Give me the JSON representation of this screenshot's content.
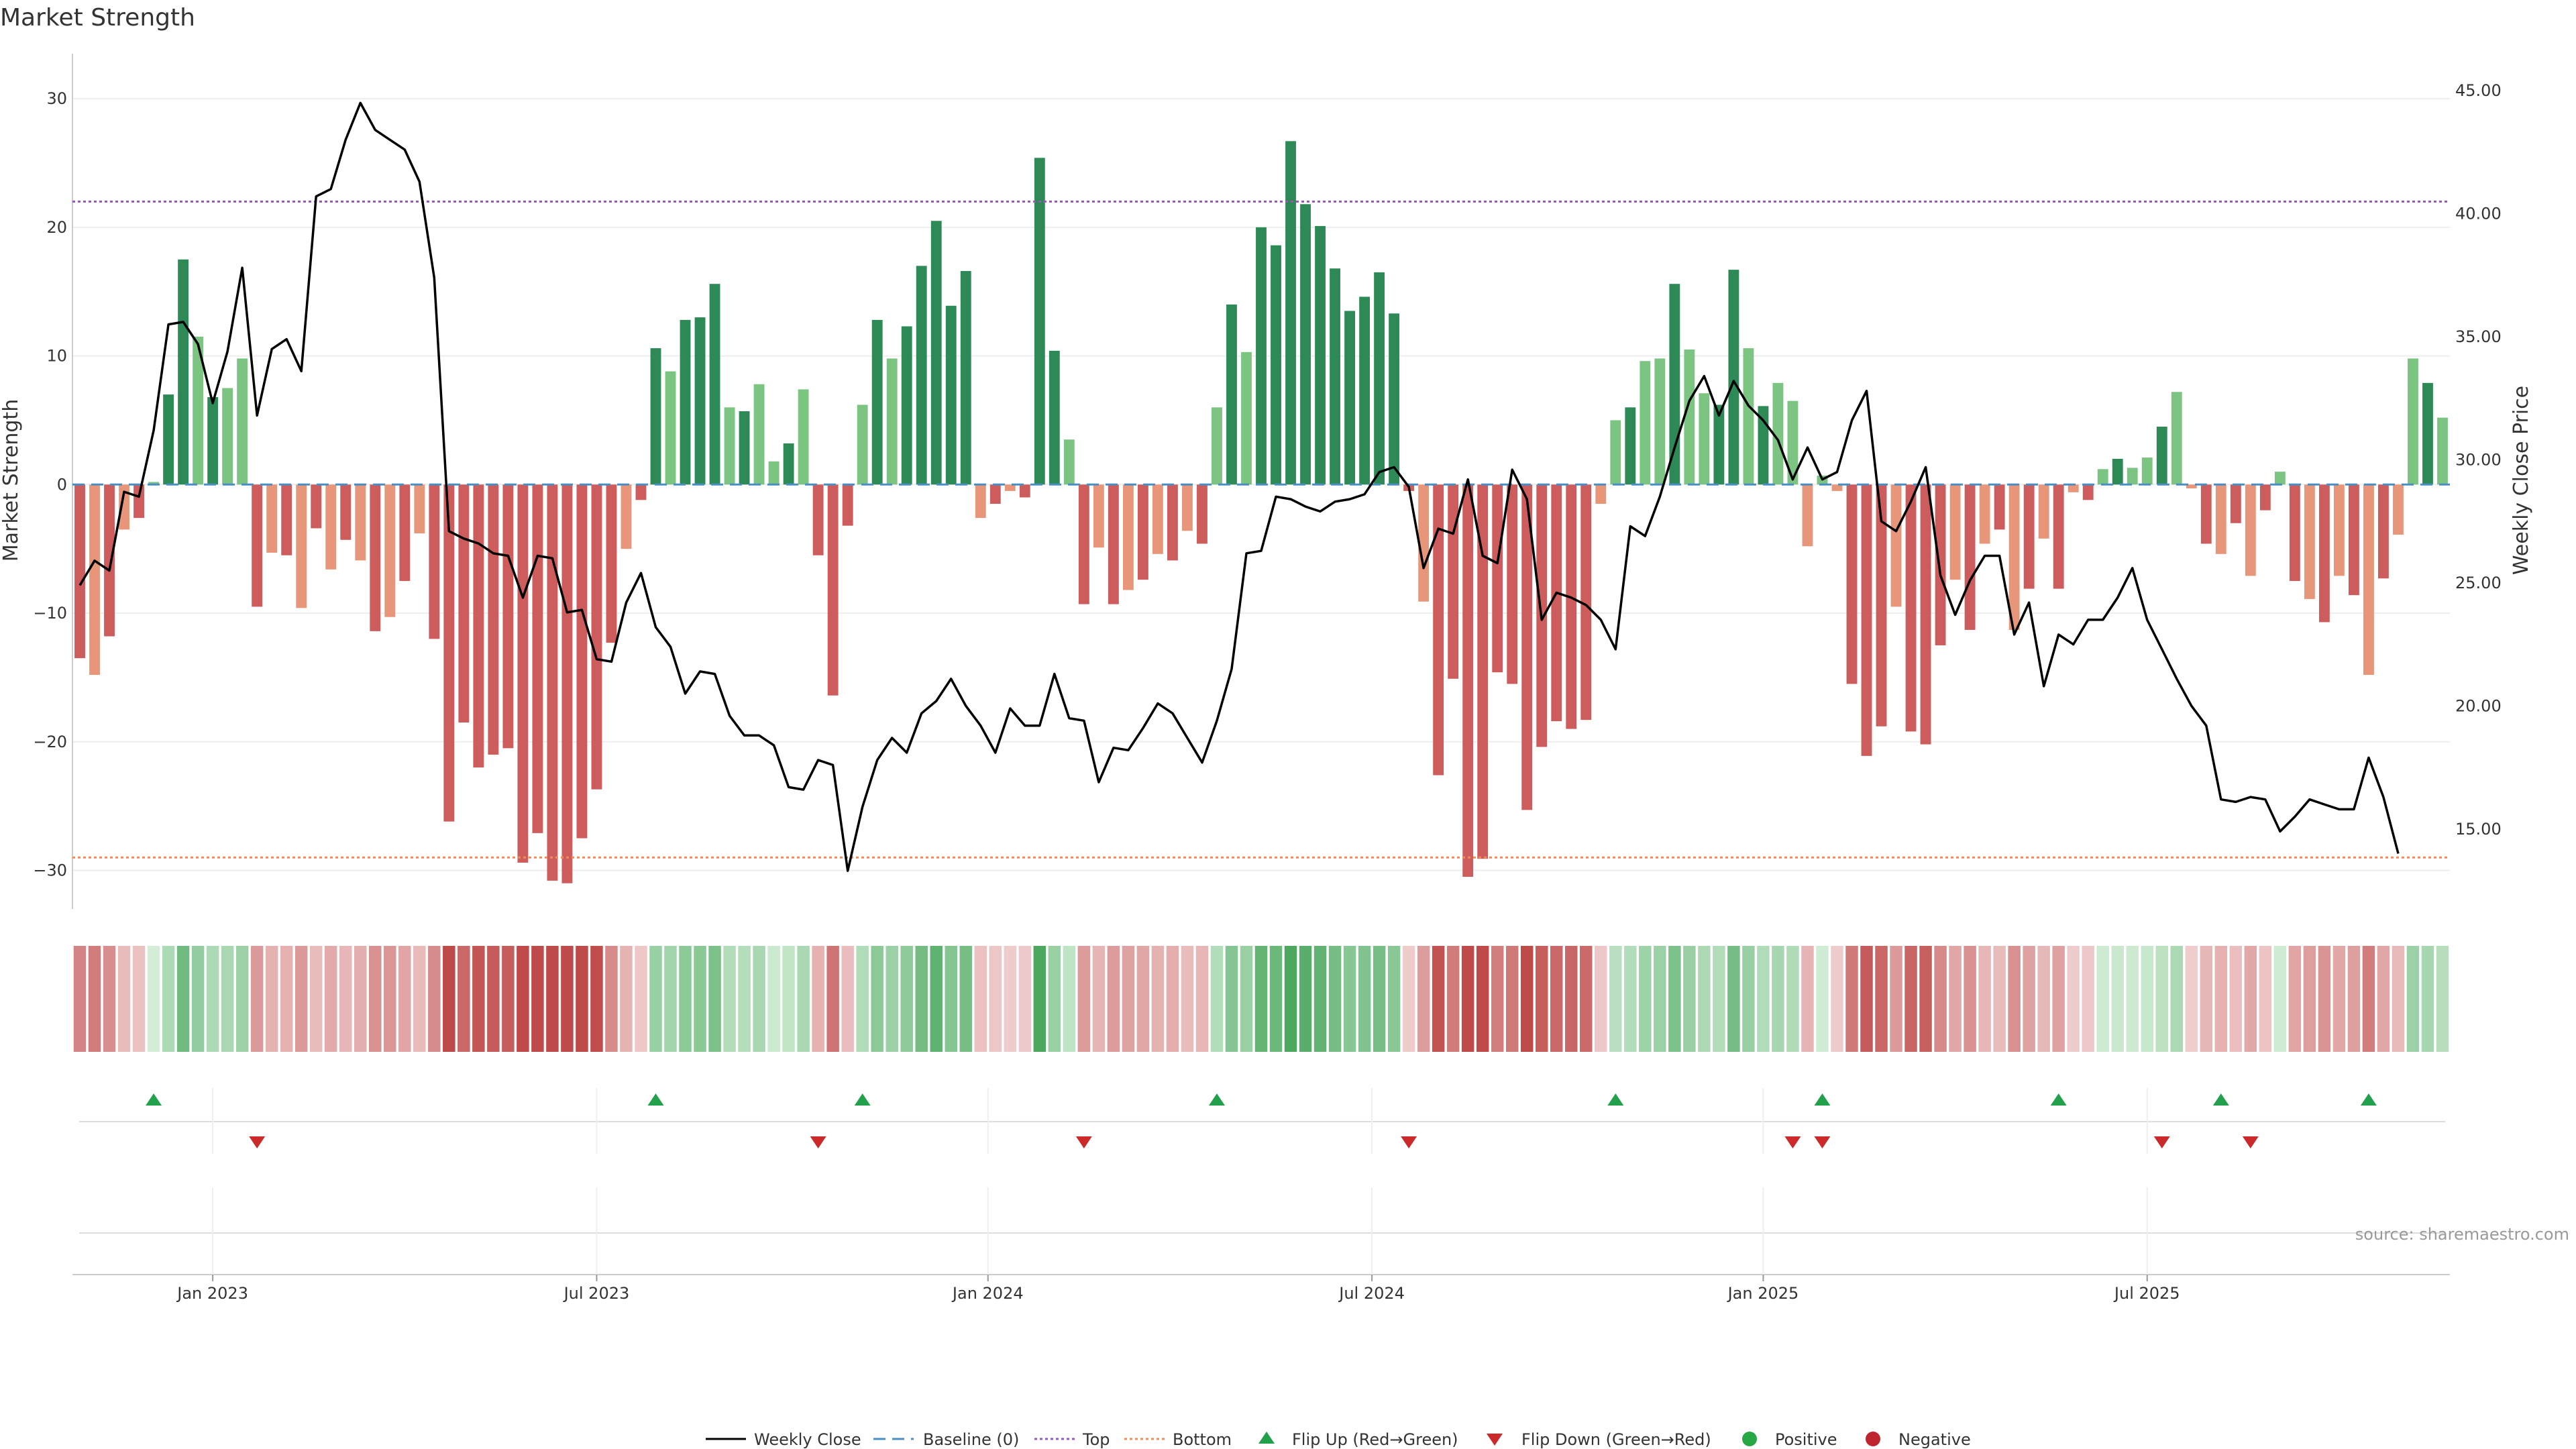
{
  "chart_data": {
    "type": "bar",
    "title": "Market Strength",
    "ylabel": "Market Strength",
    "y2label": "Weekly Close Price",
    "ylim": [
      -33,
      33.5
    ],
    "y2lim": [
      11.75,
      46.5
    ],
    "yticks": [
      30,
      20,
      10,
      0,
      -10,
      -20,
      -30
    ],
    "y2ticks": [
      "45.00",
      "40.00",
      "35.00",
      "30.00",
      "25.00",
      "20.00",
      "15.00"
    ],
    "xticks": [
      {
        "label": "Jan 2023",
        "week": 9
      },
      {
        "label": "Jul 2023",
        "week": 35
      },
      {
        "label": "Jan 2024",
        "week": 61.5
      },
      {
        "label": "Jul 2024",
        "week": 87.5
      },
      {
        "label": "Jan 2025",
        "week": 114
      },
      {
        "label": "Jul 2025",
        "week": 140
      }
    ],
    "top_line": 22,
    "bottom_line": -29,
    "strength": [
      -13.5,
      -14.8,
      -11.8,
      -3.5,
      -2.6,
      0.2,
      7,
      17.5,
      11.5,
      6.8,
      7.5,
      9.8,
      -9.5,
      -5.3,
      -5.5,
      -9.6,
      -3.4,
      -6.6,
      -4.3,
      -5.9,
      -11.4,
      -10.3,
      -7.5,
      -3.8,
      -12,
      -26.2,
      -18.5,
      -22,
      -21,
      -20.5,
      -29.4,
      -27.1,
      -30.8,
      -31,
      -27.5,
      -23.7,
      -12.3,
      -5,
      -1.2,
      10.6,
      8.8,
      12.8,
      13,
      15.6,
      6,
      5.7,
      7.8,
      1.8,
      3.2,
      7.4,
      -5.5,
      -16.4,
      -3.2,
      6.2,
      12.8,
      9.8,
      12.3,
      17,
      20.5,
      13.9,
      16.6,
      -2.6,
      -1.5,
      -0.5,
      -1,
      25.4,
      10.4,
      3.5,
      -9.3,
      -4.9,
      -9.3,
      -8.2,
      -7.4,
      -5.4,
      -5.9,
      -3.6,
      -4.6,
      6,
      14,
      10.3,
      20,
      18.6,
      26.7,
      21.8,
      20.1,
      16.8,
      13.5,
      14.6,
      16.5,
      13.3,
      -0.5,
      -9.1,
      -22.6,
      -15.1,
      -30.5,
      -29.1,
      -14.6,
      -15.5,
      -25.3,
      -20.4,
      -18.4,
      -19,
      -18.3,
      -1.5,
      5,
      6,
      9.6,
      9.8,
      15.6,
      10.5,
      7.1,
      6.2,
      16.7,
      10.6,
      6.1,
      7.9,
      6.5,
      -4.8,
      0.7,
      -0.5,
      -15.5,
      -21.1,
      -18.8,
      -9.5,
      -19.2,
      -20.2,
      -12.5,
      -7.4,
      -11.3,
      -4.6,
      -3.5,
      -11.3,
      -8.1,
      -4.2,
      -8.1,
      -0.6,
      -1.2,
      1.2,
      2,
      1.3,
      2.1,
      4.5,
      7.2,
      -0.3,
      -4.6,
      -5.4,
      -3,
      -7.1,
      -2,
      1,
      -7.5,
      -8.9,
      -10.7,
      -7.1,
      -8.6,
      -14.8,
      -7.3,
      -3.9,
      9.8,
      7.9,
      5.2
    ],
    "weekly_close": [
      24.9,
      25.9,
      25.5,
      28.7,
      28.5,
      31.2,
      35.5,
      35.6,
      34.7,
      32.3,
      34.4,
      37.8,
      31.8,
      34.5,
      34.9,
      33.6,
      40.7,
      41,
      43,
      44.5,
      43.4,
      43,
      42.6,
      41.3,
      37.4,
      27.1,
      26.8,
      26.6,
      26.2,
      26.1,
      24.4,
      26.1,
      26,
      23.8,
      23.9,
      21.9,
      21.8,
      24.2,
      25.4,
      23.2,
      22.4,
      20.5,
      21.4,
      21.3,
      19.6,
      18.8,
      18.8,
      18.4,
      16.7,
      16.6,
      17.8,
      17.6,
      13.3,
      15.9,
      17.8,
      18.7,
      18.1,
      19.7,
      20.2,
      21.1,
      20,
      19.2,
      18.1,
      19.9,
      19.2,
      19.2,
      21.3,
      19.5,
      19.4,
      16.9,
      18.3,
      18.2,
      19.1,
      20.1,
      19.7,
      18.7,
      17.7,
      19.4,
      21.5,
      26.2,
      26.3,
      28.5,
      28.4,
      28.1,
      27.9,
      28.3,
      28.4,
      28.6,
      29.5,
      29.7,
      28.9,
      25.6,
      27.2,
      27,
      29.2,
      26.1,
      25.8,
      29.6,
      28.4,
      23.5,
      24.6,
      24.4,
      24.1,
      23.5,
      22.3,
      27.3,
      26.9,
      28.5,
      30.5,
      32.4,
      33.4,
      31.8,
      33.2,
      32.2,
      31.6,
      30.8,
      29.2,
      30.5,
      29.2,
      29.5,
      31.6,
      32.8,
      27.5,
      27.1,
      28.3,
      29.7,
      25.3,
      23.7,
      25.1,
      26.1,
      26.1,
      22.9,
      24.2,
      20.8,
      22.9,
      22.5,
      23.5,
      23.5,
      24.4,
      25.6,
      23.5,
      22.3,
      21.1,
      20,
      19.2,
      16.2,
      16.1,
      16.3,
      16.2,
      14.9,
      15.5,
      16.2,
      16,
      15.8,
      15.8,
      17.9,
      16.3,
      14
    ]
  },
  "heat_colors": {
    "green_light": "#d4eed8",
    "green_dark": "#4ca85f",
    "red_light": "#f0cfcf",
    "red_dark": "#bf4a4a"
  },
  "signals": {
    "flip_up_weeks": [
      5,
      39,
      53,
      77,
      104,
      118,
      134,
      145,
      155
    ],
    "flip_down_weeks": [
      12,
      50,
      68,
      90,
      116,
      118,
      141,
      147
    ]
  },
  "colors": {
    "pos_dark": "#2d8a57",
    "pos_light": "#7cc482",
    "neg_dark": "#cd5c5c",
    "neg_light": "#e8967a",
    "price": "#000000",
    "baseline": "#4a8fc4",
    "top": "#9b59b6",
    "bottom": "#f08c5a",
    "flip_up": "#22a04b",
    "flip_down": "#cc2a2a",
    "positive": "#28a745",
    "negative": "#c0252f"
  },
  "source": "source: sharemaestro.com",
  "legend": {
    "weekly_close": "Weekly Close",
    "baseline": "Baseline (0)",
    "top": "Top",
    "bottom": "Bottom",
    "flip_up": "Flip Up (Red→Green)",
    "flip_down": "Flip Down (Green→Red)",
    "positive": "Positive",
    "negative": "Negative"
  }
}
